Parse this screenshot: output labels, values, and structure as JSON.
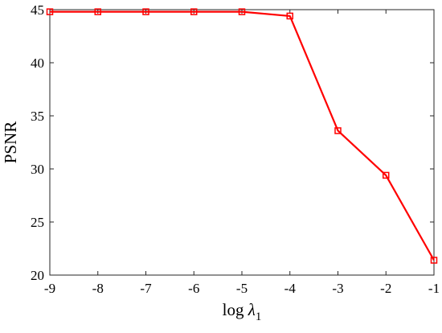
{
  "chart_data": {
    "type": "line",
    "title": "",
    "xlabel": {
      "text": "log ",
      "symbol": "λ",
      "subscript": "1"
    },
    "ylabel": "PSNR",
    "xlim": [
      -9,
      -1
    ],
    "ylim": [
      20,
      45
    ],
    "xticks": [
      "-9",
      "-8",
      "-7",
      "-6",
      "-5",
      "-4",
      "-3",
      "-2",
      "-1"
    ],
    "yticks": [
      "20",
      "25",
      "30",
      "35",
      "40",
      "45"
    ],
    "grid": false,
    "series": [
      {
        "color": "#ff0000",
        "marker": "square",
        "x": [
          -9,
          -8,
          -7,
          -6,
          -5,
          -4,
          -3,
          -2,
          -1
        ],
        "y": [
          44.8,
          44.8,
          44.8,
          44.8,
          44.8,
          44.4,
          33.6,
          29.4,
          21.4
        ]
      }
    ]
  }
}
